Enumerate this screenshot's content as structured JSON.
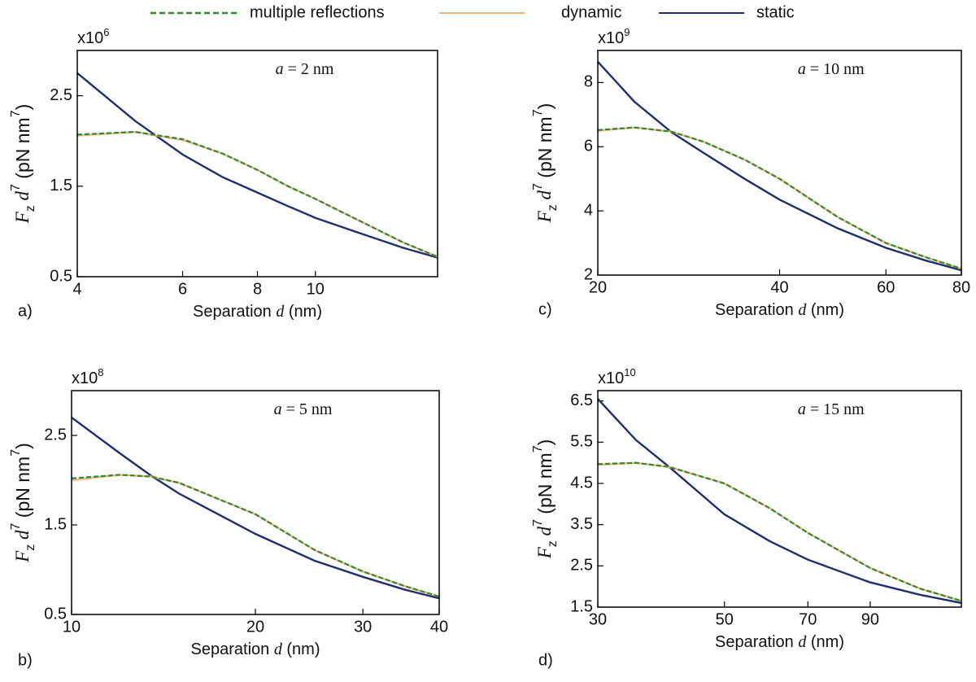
{
  "legend": [
    {
      "name": "multiple reflections",
      "color": "#2e8b2e",
      "dash": true
    },
    {
      "name": "dynamic",
      "color": "#f4b183",
      "dash": false
    },
    {
      "name": "static",
      "color": "#1f2f6e",
      "dash": false
    }
  ],
  "chart_data": [
    {
      "type": "line",
      "panel": "a)",
      "multiplier": [
        "x10",
        "6"
      ],
      "annotation": [
        "a",
        " = 2 nm"
      ],
      "xlabel": [
        "Separation ",
        "d",
        " (nm)"
      ],
      "ylabel": [
        "F",
        "z",
        " d",
        "7",
        " (pN nm",
        "7",
        ")"
      ],
      "xscale": "log",
      "xlim": [
        4,
        16
      ],
      "xticks": [
        4,
        6,
        8,
        10
      ],
      "ylim": [
        0.5,
        3
      ],
      "yticks": [
        0.5,
        1.5,
        2.5
      ],
      "x": [
        4,
        5,
        6,
        7,
        8,
        9,
        10,
        12,
        14,
        16
      ],
      "series": [
        {
          "color": "#1f2f6e",
          "dash": false,
          "values": [
            2.75,
            2.22,
            1.85,
            1.6,
            1.43,
            1.28,
            1.15,
            0.97,
            0.82,
            0.71
          ]
        },
        {
          "color": "#f4b183",
          "dash": false,
          "values": [
            2.06,
            2.1,
            2.01,
            1.86,
            1.68,
            1.5,
            1.36,
            1.1,
            0.88,
            0.72
          ]
        },
        {
          "color": "#2e8b2e",
          "dash": true,
          "values": [
            2.07,
            2.1,
            2.02,
            1.86,
            1.68,
            1.5,
            1.36,
            1.1,
            0.88,
            0.72
          ]
        }
      ]
    },
    {
      "type": "line",
      "panel": "c)",
      "multiplier": [
        "x10",
        "9"
      ],
      "annotation": [
        "a",
        " = 10 nm"
      ],
      "xlabel": [
        "Separation ",
        "d",
        " (nm)"
      ],
      "ylabel": [
        "F",
        "z",
        " d",
        "7",
        " (pN nm",
        "7",
        ")"
      ],
      "xscale": "log",
      "xlim": [
        20,
        80
      ],
      "xticks": [
        20,
        40,
        60,
        80
      ],
      "ylim": [
        2,
        9
      ],
      "yticks": [
        2,
        4,
        6,
        8
      ],
      "x": [
        20,
        23,
        26.5,
        30,
        35,
        40,
        50,
        60,
        70,
        80
      ],
      "series": [
        {
          "color": "#1f2f6e",
          "dash": false,
          "values": [
            8.65,
            7.4,
            6.45,
            5.8,
            5.0,
            4.35,
            3.45,
            2.85,
            2.45,
            2.15
          ]
        },
        {
          "color": "#f4b183",
          "dash": false,
          "values": [
            6.5,
            6.6,
            6.47,
            6.15,
            5.6,
            5.0,
            3.8,
            3.0,
            2.55,
            2.2
          ]
        },
        {
          "color": "#2e8b2e",
          "dash": true,
          "values": [
            6.52,
            6.6,
            6.47,
            6.15,
            5.6,
            5.0,
            3.8,
            3.0,
            2.55,
            2.2
          ]
        }
      ]
    },
    {
      "type": "line",
      "panel": "b)",
      "multiplier": [
        "x10",
        "8"
      ],
      "annotation": [
        "a",
        " = 5 nm"
      ],
      "xlabel": [
        "Separation ",
        "d",
        " (nm)"
      ],
      "ylabel": [
        "F",
        "z",
        " d",
        "7",
        " (pN nm",
        "7",
        ")"
      ],
      "xscale": "log",
      "xlim": [
        10,
        40
      ],
      "xticks": [
        10,
        20,
        30,
        40
      ],
      "ylim": [
        0.5,
        3
      ],
      "yticks": [
        0.5,
        1.5,
        2.5
      ],
      "x": [
        10,
        12,
        13.5,
        15,
        20,
        25,
        30,
        35,
        40
      ],
      "series": [
        {
          "color": "#1f2f6e",
          "dash": false,
          "values": [
            2.7,
            2.3,
            2.05,
            1.85,
            1.4,
            1.1,
            0.92,
            0.78,
            0.68
          ]
        },
        {
          "color": "#f4b183",
          "dash": false,
          "values": [
            2.0,
            2.06,
            2.04,
            1.97,
            1.62,
            1.22,
            0.98,
            0.82,
            0.7
          ]
        },
        {
          "color": "#2e8b2e",
          "dash": true,
          "values": [
            2.02,
            2.06,
            2.04,
            1.97,
            1.62,
            1.22,
            0.98,
            0.82,
            0.7
          ]
        }
      ]
    },
    {
      "type": "line",
      "panel": "d)",
      "multiplier": [
        "x10",
        "10"
      ],
      "annotation": [
        "a",
        " = 15 nm"
      ],
      "xlabel": [
        "Separation ",
        "d",
        " (nm)"
      ],
      "ylabel": [
        "F",
        "z",
        " d",
        "7",
        " (pN nm",
        "7",
        ")"
      ],
      "xscale": "log",
      "xlim": [
        30,
        130
      ],
      "xticks": [
        30,
        50,
        70,
        90
      ],
      "ylim": [
        1.5,
        6.75
      ],
      "yticks": [
        1.5,
        2.5,
        3.5,
        4.5,
        5.5,
        6.5
      ],
      "x": [
        30,
        35,
        40,
        50,
        60,
        70,
        90,
        110,
        130
      ],
      "series": [
        {
          "color": "#1f2f6e",
          "dash": false,
          "values": [
            6.55,
            5.55,
            4.9,
            3.75,
            3.1,
            2.65,
            2.1,
            1.8,
            1.6
          ]
        },
        {
          "color": "#f4b183",
          "dash": false,
          "values": [
            4.95,
            5.0,
            4.9,
            4.5,
            3.9,
            3.3,
            2.45,
            1.95,
            1.65
          ]
        },
        {
          "color": "#2e8b2e",
          "dash": true,
          "values": [
            4.97,
            5.0,
            4.9,
            4.5,
            3.9,
            3.3,
            2.45,
            1.95,
            1.65
          ]
        }
      ]
    }
  ]
}
